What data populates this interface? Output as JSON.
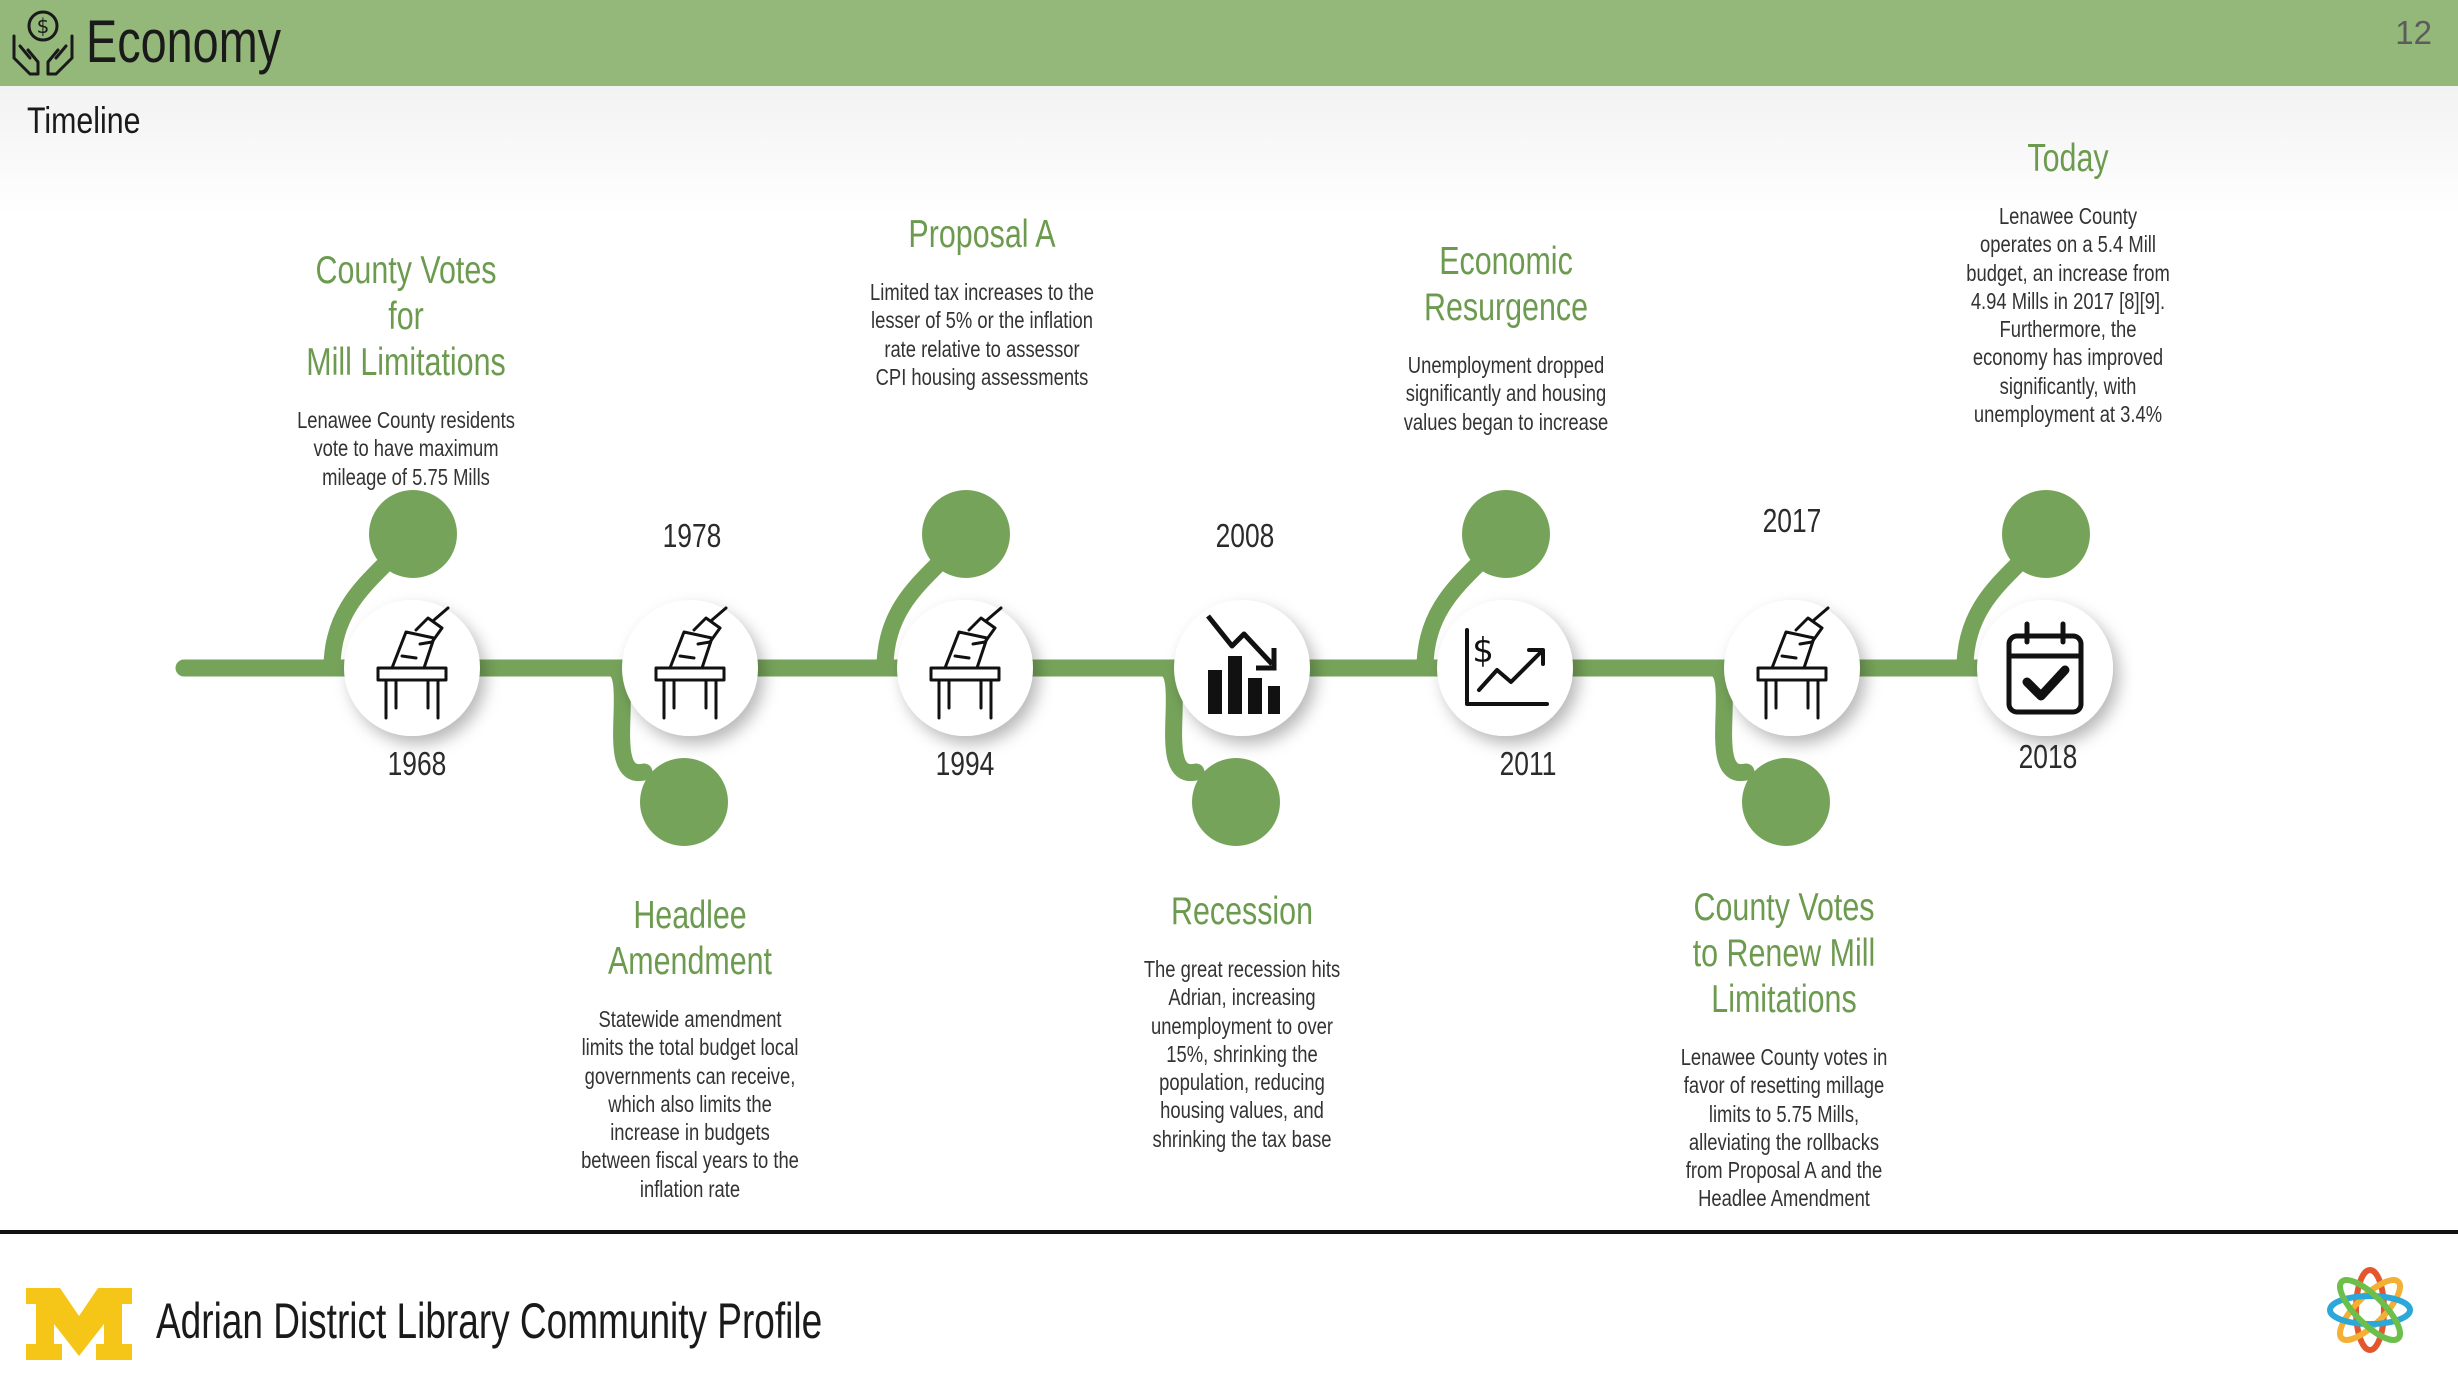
{
  "header": {
    "title": "Economy",
    "page_number": "12",
    "icon": "hands-money-icon"
  },
  "subtitle": "Timeline",
  "events": [
    {
      "year": "1968",
      "title": "County Votes for Mill Limitations",
      "title_lines": [
        "County Votes for",
        "Mill Limitations"
      ],
      "description": "Lenawee County residents vote to have maximum mileage of 5.75 Mills",
      "icon": "ballot-box-icon"
    },
    {
      "year": "1978",
      "title": "Headlee Amendment",
      "title_lines": [
        "Headlee",
        "Amendment"
      ],
      "description": "Statewide amendment limits the total budget local governments can receive, which also limits the increase in budgets between fiscal years to the inflation rate",
      "icon": "ballot-box-icon"
    },
    {
      "year": "1994",
      "title": "Proposal A",
      "title_lines": [
        "Proposal A"
      ],
      "description": "Limited tax increases to the lesser of 5% or the inflation rate relative to assessor CPI housing assessments",
      "icon": "ballot-box-icon"
    },
    {
      "year": "2008",
      "title": "Recession",
      "title_lines": [
        "Recession"
      ],
      "description": "The great recession hits Adrian, increasing unemployment to over 15%, shrinking the population, reducing housing values, and shrinking the tax base",
      "icon": "declining-chart-icon"
    },
    {
      "year": "2011",
      "title": "Economic Resurgence",
      "title_lines": [
        "Economic",
        "Resurgence"
      ],
      "description": "Unemployment dropped significantly and housing values began to increase",
      "icon": "rising-dollar-chart-icon"
    },
    {
      "year": "2017",
      "title": "County Votes to Renew Mill Limitations",
      "title_lines": [
        "County Votes",
        "to Renew Mill",
        "Limitations"
      ],
      "description": "Lenawee County votes in favor of resetting millage limits to 5.75 Mills, alleviating the rollbacks from Proposal A and the Headlee Amendment",
      "icon": "ballot-box-icon"
    },
    {
      "year": "2018",
      "title": "Today",
      "title_lines": [
        "Today"
      ],
      "description": "Lenawee County operates on a 5.4 Mill budget, an increase from 4.94 Mills in 2017 [8][9]. Furthermore, the economy has improved significantly, with unemployment at 3.4%",
      "icon": "calendar-check-icon"
    }
  ],
  "footer": {
    "text": "Adrian District Library Community Profile",
    "left_logo": "university-of-michigan-logo",
    "right_logo": "flower-logo"
  },
  "colors": {
    "header": "#93b87a",
    "timeline": "#76a35a",
    "event_title": "#6c9b4f",
    "m_logo": "#f5c518"
  }
}
